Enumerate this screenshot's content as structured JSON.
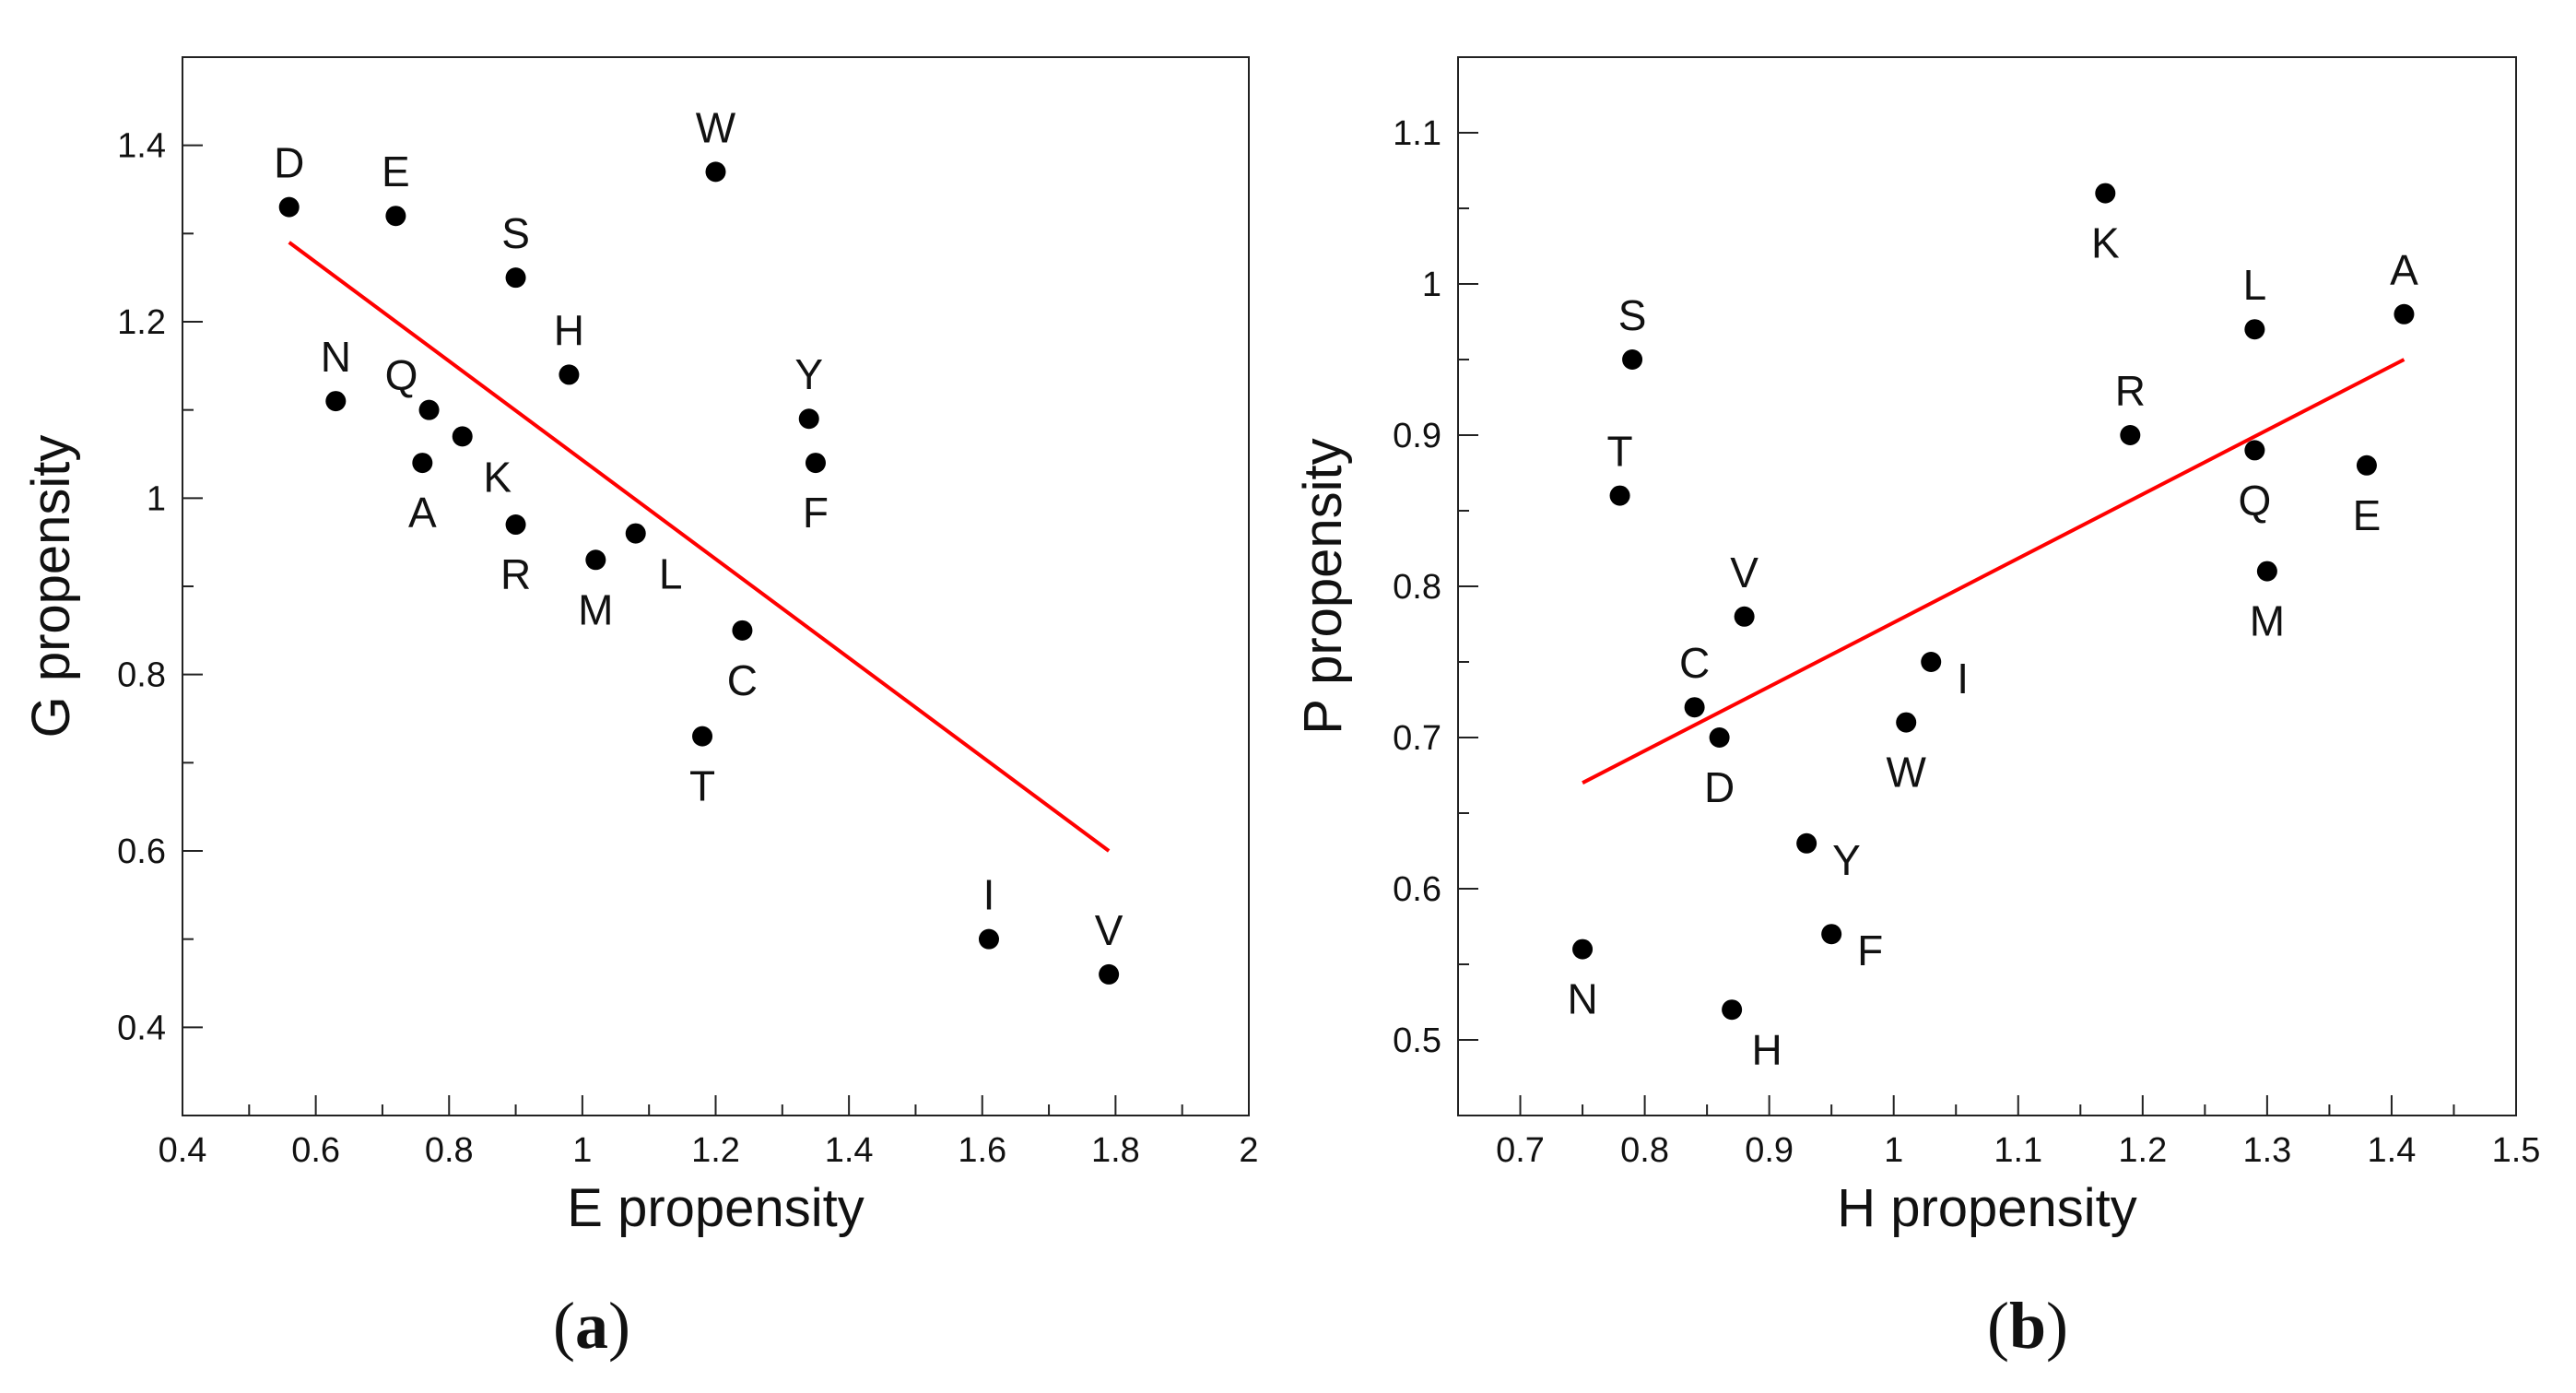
{
  "chart_data": [
    {
      "type": "scatter",
      "panel": "(a)",
      "xlabel": "E propensity",
      "ylabel": "G propensity",
      "xlim": [
        0.4,
        2.0
      ],
      "ylim": [
        0.3,
        1.5
      ],
      "xticks": [
        0.4,
        0.6,
        0.8,
        1.0,
        1.2,
        1.4,
        1.6,
        1.8,
        2.0
      ],
      "xtick_labels": [
        "0.4",
        "0.6",
        "0.8",
        "1",
        "1.2",
        "1.4",
        "1.6",
        "1.8",
        "2"
      ],
      "yticks": [
        0.4,
        0.6,
        0.8,
        1.0,
        1.2,
        1.4
      ],
      "ytick_labels": [
        "0.4",
        "0.6",
        "0.8",
        "1",
        "1.2",
        "1.4"
      ],
      "grid": false,
      "points": [
        {
          "label": "D",
          "x": 0.56,
          "y": 1.33,
          "pos": "above"
        },
        {
          "label": "E",
          "x": 0.72,
          "y": 1.32,
          "pos": "above"
        },
        {
          "label": "W",
          "x": 1.2,
          "y": 1.37,
          "pos": "above"
        },
        {
          "label": "S",
          "x": 0.9,
          "y": 1.25,
          "pos": "above"
        },
        {
          "label": "H",
          "x": 0.98,
          "y": 1.14,
          "pos": "above"
        },
        {
          "label": "N",
          "x": 0.63,
          "y": 1.11,
          "pos": "above"
        },
        {
          "label": "Q",
          "x": 0.77,
          "y": 1.1,
          "pos": "above-left"
        },
        {
          "label": "Y",
          "x": 1.34,
          "y": 1.09,
          "pos": "above"
        },
        {
          "label": "K",
          "x": 0.82,
          "y": 1.07,
          "pos": "below-right"
        },
        {
          "label": "A",
          "x": 0.76,
          "y": 1.04,
          "pos": "below"
        },
        {
          "label": "F",
          "x": 1.35,
          "y": 1.04,
          "pos": "below"
        },
        {
          "label": "R",
          "x": 0.9,
          "y": 0.97,
          "pos": "below"
        },
        {
          "label": "L",
          "x": 1.08,
          "y": 0.96,
          "pos": "below-right"
        },
        {
          "label": "M",
          "x": 1.02,
          "y": 0.93,
          "pos": "below"
        },
        {
          "label": "C",
          "x": 1.24,
          "y": 0.85,
          "pos": "below"
        },
        {
          "label": "T",
          "x": 1.18,
          "y": 0.73,
          "pos": "below"
        },
        {
          "label": "I",
          "x": 1.61,
          "y": 0.5,
          "pos": "above"
        },
        {
          "label": "V",
          "x": 1.79,
          "y": 0.46,
          "pos": "above"
        }
      ],
      "fit_line": {
        "color": "#ff0000",
        "x": [
          0.56,
          1.79
        ],
        "y": [
          1.29,
          0.6
        ]
      }
    },
    {
      "type": "scatter",
      "panel": "(b)",
      "xlabel": "H propensity",
      "ylabel": "P propensity",
      "xlim": [
        0.65,
        1.5
      ],
      "ylim": [
        0.45,
        1.15
      ],
      "xticks": [
        0.7,
        0.8,
        0.9,
        1.0,
        1.1,
        1.2,
        1.3,
        1.4,
        1.5
      ],
      "xtick_labels": [
        "0.7",
        "0.8",
        "0.9",
        "1",
        "1.1",
        "1.2",
        "1.3",
        "1.4",
        "1.5"
      ],
      "yticks": [
        0.5,
        0.6,
        0.7,
        0.8,
        0.9,
        1.0,
        1.1
      ],
      "ytick_labels": [
        "0.5",
        "0.6",
        "0.7",
        "0.8",
        "0.9",
        "1",
        "1.1"
      ],
      "grid": false,
      "points": [
        {
          "label": "K",
          "x": 1.17,
          "y": 1.06,
          "pos": "below"
        },
        {
          "label": "A",
          "x": 1.41,
          "y": 0.98,
          "pos": "above"
        },
        {
          "label": "L",
          "x": 1.29,
          "y": 0.97,
          "pos": "above"
        },
        {
          "label": "S",
          "x": 0.79,
          "y": 0.95,
          "pos": "above"
        },
        {
          "label": "R",
          "x": 1.19,
          "y": 0.9,
          "pos": "above"
        },
        {
          "label": "Q",
          "x": 1.29,
          "y": 0.89,
          "pos": "below"
        },
        {
          "label": "E",
          "x": 1.38,
          "y": 0.88,
          "pos": "below"
        },
        {
          "label": "T",
          "x": 0.78,
          "y": 0.86,
          "pos": "above"
        },
        {
          "label": "M",
          "x": 1.3,
          "y": 0.81,
          "pos": "below"
        },
        {
          "label": "V",
          "x": 0.88,
          "y": 0.78,
          "pos": "above"
        },
        {
          "label": "I",
          "x": 1.03,
          "y": 0.75,
          "pos": "right"
        },
        {
          "label": "C",
          "x": 0.84,
          "y": 0.72,
          "pos": "above"
        },
        {
          "label": "W",
          "x": 1.01,
          "y": 0.71,
          "pos": "below"
        },
        {
          "label": "D",
          "x": 0.86,
          "y": 0.7,
          "pos": "below"
        },
        {
          "label": "Y",
          "x": 0.93,
          "y": 0.63,
          "pos": "right"
        },
        {
          "label": "F",
          "x": 0.95,
          "y": 0.57,
          "pos": "right"
        },
        {
          "label": "N",
          "x": 0.75,
          "y": 0.56,
          "pos": "below"
        },
        {
          "label": "H",
          "x": 0.87,
          "y": 0.52,
          "pos": "below-right"
        }
      ],
      "fit_line": {
        "color": "#ff0000",
        "x": [
          0.75,
          1.41
        ],
        "y": [
          0.67,
          0.95
        ]
      }
    }
  ]
}
